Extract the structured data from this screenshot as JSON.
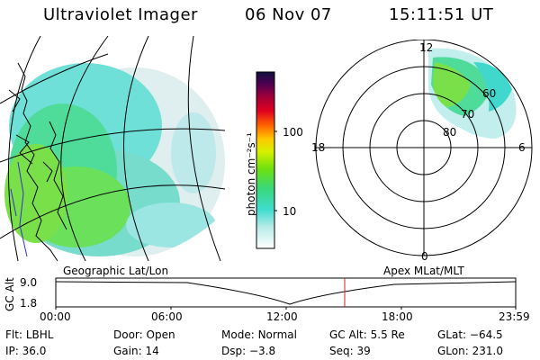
{
  "header": {
    "instrument": "Ultraviolet Imager",
    "date": "06 Nov 07",
    "time": "15:11:51 UT"
  },
  "colorbar": {
    "label": "photon cm⁻²s⁻¹",
    "ticks": [
      "100",
      "10"
    ]
  },
  "polar_plot": {
    "mlt_labels": {
      "top": "12",
      "right": "6",
      "bottom": "0",
      "left": "18"
    },
    "lat_labels": [
      "60",
      "70",
      "80"
    ]
  },
  "panel_labels": {
    "left": "Geographic Lat/Lon",
    "right": "Apex MLat/MLT"
  },
  "alt_plot": {
    "axis_title": "GC Alt",
    "y_ticks": [
      "9.0",
      "1.8"
    ],
    "x_ticks": [
      "00:00",
      "06:00",
      "12:00",
      "18:00",
      "23:59"
    ]
  },
  "footer": {
    "row1": [
      {
        "label": "Flt:",
        "value": "LBHL"
      },
      {
        "label": "Door:",
        "value": "Open"
      },
      {
        "label": "Mode:",
        "value": "Normal"
      },
      {
        "label": "GC Alt:",
        "value": "5.5 Re"
      },
      {
        "label": "GLat:",
        "value": "−64.5"
      }
    ],
    "row2": [
      {
        "label": "IP:",
        "value": "36.0"
      },
      {
        "label": "Gain:",
        "value": "14"
      },
      {
        "label": "Dsp:",
        "value": "−3.8"
      },
      {
        "label": "Seq:",
        "value": "39"
      },
      {
        "label": "GLon:",
        "value": "231.0"
      }
    ]
  }
}
